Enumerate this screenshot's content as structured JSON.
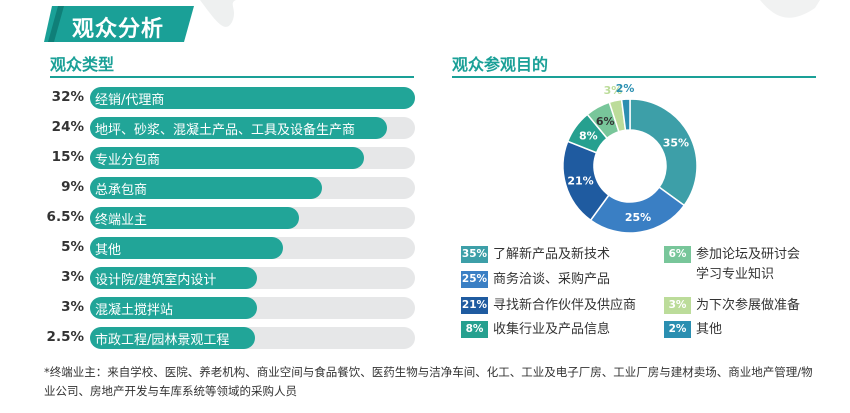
{
  "main_title": "观众分析",
  "left_section_title": "观众类型",
  "right_section_title": "观众参观目的",
  "chart_data": [
    {
      "type": "bar",
      "orientation": "horizontal",
      "title": "观众类型",
      "categories": [
        "经销/代理商",
        "地坪、砂浆、混凝土产品、工具及设备生产商",
        "专业分包商",
        "总承包商",
        "终端业主",
        "其他",
        "设计院/建筑室内设计",
        "混凝土搅拌站",
        "市政工程/园林景观工程"
      ],
      "values": [
        32,
        24,
        15,
        9,
        6.5,
        5,
        3,
        3,
        2.5
      ],
      "value_labels": [
        "32%",
        "24%",
        "15%",
        "9%",
        "6.5%",
        "5%",
        "3%",
        "3%",
        "2.5%"
      ]
    },
    {
      "type": "pie",
      "variant": "donut",
      "title": "观众参观目的",
      "categories": [
        "了解新产品及新技术",
        "商务洽谈、采购产品",
        "寻找新合作伙伴及供应商",
        "收集行业及产品信息",
        "参加论坛及研讨会学习专业知识",
        "为下次参展做准备",
        "其他"
      ],
      "values": [
        35,
        25,
        21,
        8,
        6,
        3,
        2
      ],
      "value_labels": [
        "35%",
        "25%",
        "21%",
        "8%",
        "6%",
        "3%",
        "2%"
      ],
      "colors": [
        "#3d9fa8",
        "#3a7fc4",
        "#1f5ba0",
        "#26a08f",
        "#78c69a",
        "#bcdc9a",
        "#2b8fb1"
      ],
      "legend_position": "bottom"
    }
  ],
  "legend_left": [
    {
      "pct": "35%",
      "text": "了解新产品及新技术",
      "color": "#3d9fa8"
    },
    {
      "pct": "25%",
      "text": "商务洽谈、采购产品",
      "color": "#3a7fc4"
    },
    {
      "pct": "21%",
      "text": "寻找新合作伙伴及供应商",
      "color": "#1f5ba0"
    },
    {
      "pct": "8%",
      "text": "收集行业及产品信息",
      "color": "#26a08f"
    }
  ],
  "legend_right": [
    {
      "pct": "6%",
      "text1": "参加论坛及研讨会",
      "text2": "学习专业知识",
      "color": "#78c69a"
    },
    {
      "pct": "3%",
      "text": "为下次参展做准备",
      "color": "#bcdc9a"
    },
    {
      "pct": "2%",
      "text": "其他",
      "color": "#2b8fb1"
    }
  ],
  "footnote": "*终端业主：来自学校、医院、养老机构、商业空间与食品餐饮、医药生物与洁净车间、化工、工业及电子厂房、工业厂房与建材卖场、商业地产管理/物业公司、房地产开发与车库系统等领域的采购人员"
}
